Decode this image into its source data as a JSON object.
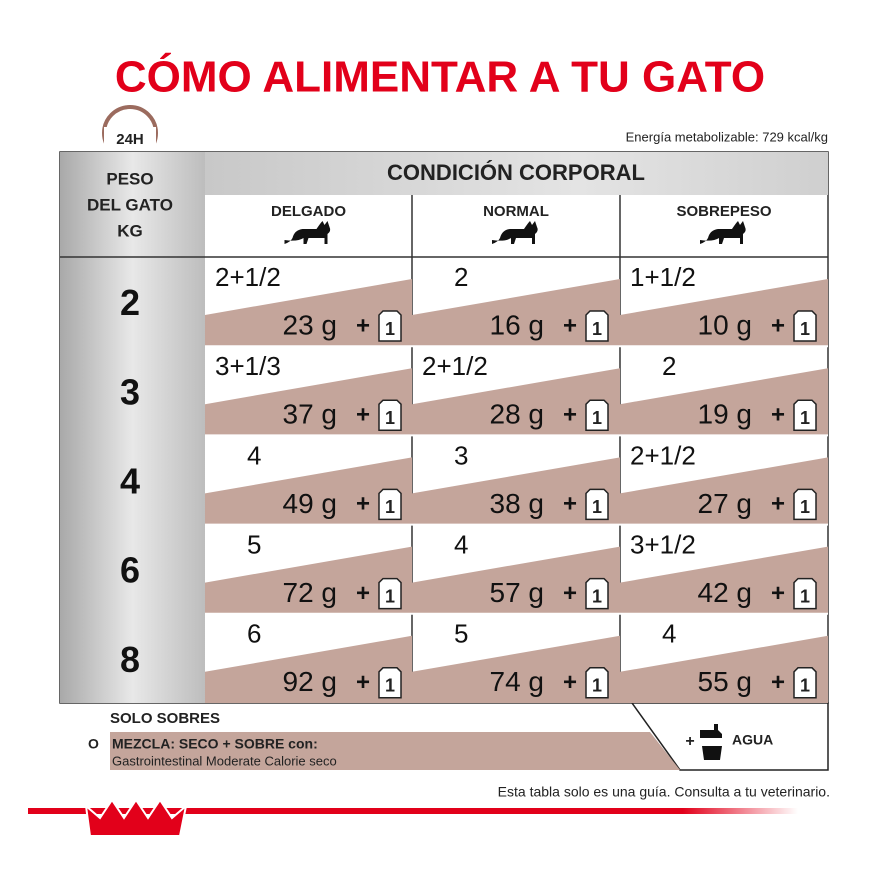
{
  "title": "CÓMO ALIMENTAR A TU GATO",
  "badge": "24H",
  "energy": "Energía metabolizable: 729 kcal/kg",
  "header": {
    "weight_label": [
      "PESO",
      "DEL GATO",
      "KG"
    ],
    "condition": "CONDICIÓN CORPORAL",
    "columns": [
      "DELGADO",
      "NORMAL",
      "SOBREPESO"
    ]
  },
  "plus": "+",
  "pouch_label": "1",
  "rows": [
    {
      "weight": "2",
      "cells": [
        {
          "pouches": "2+1/2",
          "grams": "23 g"
        },
        {
          "pouches": "2",
          "grams": "16 g"
        },
        {
          "pouches": "1+1/2",
          "grams": "10 g"
        }
      ]
    },
    {
      "weight": "3",
      "cells": [
        {
          "pouches": "3+1/3",
          "grams": "37 g"
        },
        {
          "pouches": "2+1/2",
          "grams": "28 g"
        },
        {
          "pouches": "2",
          "grams": "19 g"
        }
      ]
    },
    {
      "weight": "4",
      "cells": [
        {
          "pouches": "4",
          "grams": "49 g"
        },
        {
          "pouches": "3",
          "grams": "38 g"
        },
        {
          "pouches": "2+1/2",
          "grams": "27 g"
        }
      ]
    },
    {
      "weight": "6",
      "cells": [
        {
          "pouches": "5",
          "grams": "72 g"
        },
        {
          "pouches": "4",
          "grams": "57 g"
        },
        {
          "pouches": "3+1/2",
          "grams": "42 g"
        }
      ]
    },
    {
      "weight": "8",
      "cells": [
        {
          "pouches": "6",
          "grams": "92 g"
        },
        {
          "pouches": "5",
          "grams": "74 g"
        },
        {
          "pouches": "4",
          "grams": "55 g"
        }
      ]
    }
  ],
  "footer": {
    "only_pouches": "SOLO SOBRES",
    "or": "O",
    "mix": "MEZCLA: SECO + SOBRE con:",
    "product": "Gastrointestinal Moderate Calorie seco",
    "water": "AGUA",
    "note": "Esta tabla solo es una guía. Consulta a tu veterinario."
  }
}
